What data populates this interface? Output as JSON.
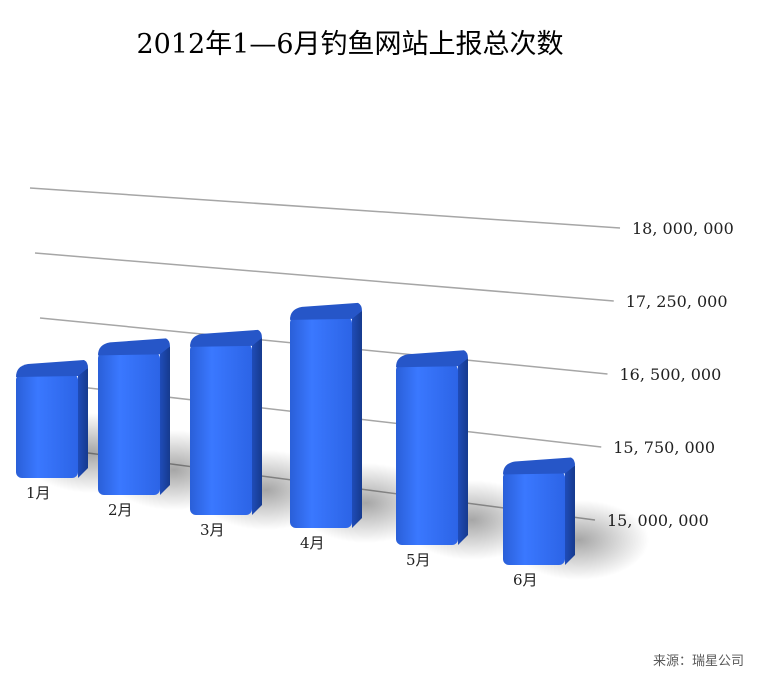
{
  "chart_data": {
    "type": "bar",
    "title": "2012年1—6月钓鱼网站上报总次数",
    "categories": [
      "1月",
      "2月",
      "3月",
      "4月",
      "5月",
      "6月"
    ],
    "values": [
      15950000,
      16300000,
      16500000,
      16900000,
      16500000,
      15500000
    ],
    "yticks": [
      "15, 000, 000",
      "15, 750, 000",
      "16, 500, 000",
      "17, 250, 000",
      "18, 000, 000"
    ],
    "ytick_values": [
      15000000,
      15750000,
      16500000,
      17250000,
      18000000
    ],
    "ylim": [
      15000000,
      18000000
    ],
    "grid": true,
    "style": "3d",
    "bar_color": "#2f6cf0",
    "source": "来源：瑞星公司"
  }
}
